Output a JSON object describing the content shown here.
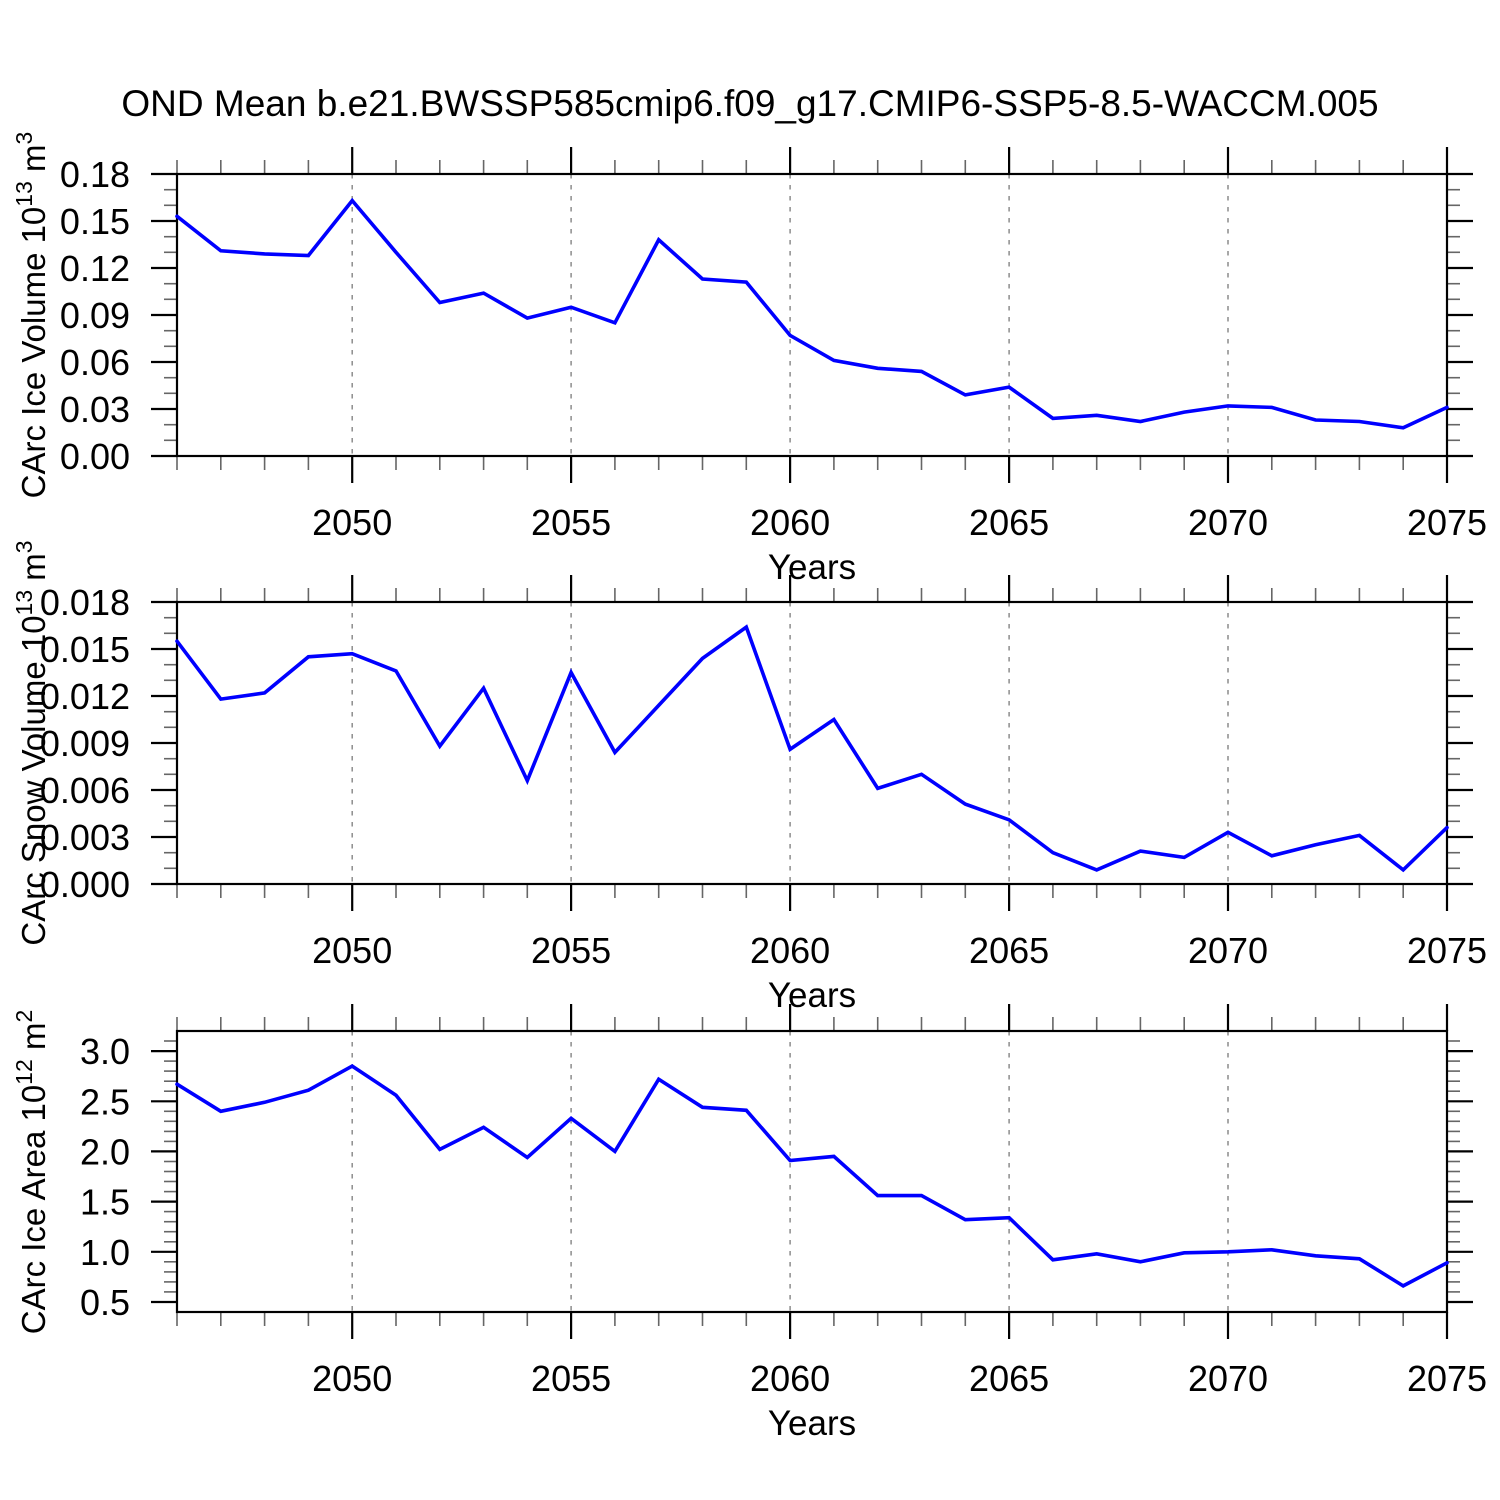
{
  "title": "OND Mean b.e21.BWSSP585cmip6.f09_g17.CMIP6-SSP5-8.5-WACCM.005",
  "x_axis_label": "Years",
  "colors": {
    "line": "#0000FF",
    "grid": "#8C8C8C",
    "axis": "#000000",
    "tick_major": "#000000",
    "tick_minor": "#666666",
    "text": "#000000",
    "background": "#FFFFFF"
  },
  "chart_data": [
    {
      "type": "line",
      "name": "ice-volume",
      "title": "",
      "xlabel": "Years",
      "ylabel": "CArc Ice Volume 10^13 m^3",
      "ylabel_parts": {
        "prefix": "CArc Ice Volume 10",
        "exp": "13",
        "mid": " m",
        "exp2": "3"
      },
      "x": [
        2046,
        2047,
        2048,
        2049,
        2050,
        2051,
        2052,
        2053,
        2054,
        2055,
        2056,
        2057,
        2058,
        2059,
        2060,
        2061,
        2062,
        2063,
        2064,
        2065,
        2066,
        2067,
        2068,
        2069,
        2070,
        2071,
        2072,
        2073,
        2074,
        2075
      ],
      "values": [
        0.153,
        0.131,
        0.129,
        0.128,
        0.163,
        0.13,
        0.098,
        0.104,
        0.088,
        0.095,
        0.085,
        0.138,
        0.113,
        0.111,
        0.077,
        0.061,
        0.056,
        0.054,
        0.039,
        0.044,
        0.024,
        0.026,
        0.022,
        0.028,
        0.032,
        0.031,
        0.023,
        0.022,
        0.018,
        0.031
      ],
      "xlim": [
        2046,
        2075
      ],
      "ylim": [
        0,
        0.18
      ],
      "yticks": [
        0,
        0.03,
        0.06,
        0.09,
        0.12,
        0.15,
        0.18
      ],
      "ytick_labels": [
        "0.00",
        "0.03",
        "0.06",
        "0.09",
        "0.12",
        "0.15",
        "0.18"
      ],
      "yminor_step": 0.01,
      "xticks": [
        2050,
        2055,
        2060,
        2065,
        2070,
        2075
      ],
      "xtick_labels": [
        "2050",
        "2055",
        "2060",
        "2065",
        "2070",
        "2075"
      ],
      "grid_years": [
        2050,
        2055,
        2060,
        2065,
        2070
      ],
      "grid": true
    },
    {
      "type": "line",
      "name": "snow-volume",
      "title": "",
      "xlabel": "Years",
      "ylabel": "CArc Snow Volume 10^13 m^3",
      "ylabel_parts": {
        "prefix": "CArc Snow Volume 10",
        "exp": "13",
        "mid": " m",
        "exp2": "3"
      },
      "x": [
        2046,
        2047,
        2048,
        2049,
        2050,
        2051,
        2052,
        2053,
        2054,
        2055,
        2056,
        2057,
        2058,
        2059,
        2060,
        2061,
        2062,
        2063,
        2064,
        2065,
        2066,
        2067,
        2068,
        2069,
        2070,
        2071,
        2072,
        2073,
        2074,
        2075
      ],
      "values": [
        0.0155,
        0.0118,
        0.0122,
        0.0145,
        0.0147,
        0.0136,
        0.0088,
        0.0125,
        0.0066,
        0.0135,
        0.0084,
        0.0114,
        0.0144,
        0.0164,
        0.0086,
        0.0105,
        0.0061,
        0.007,
        0.0051,
        0.0041,
        0.002,
        0.0009,
        0.0021,
        0.0017,
        0.0033,
        0.0018,
        0.0025,
        0.0031,
        0.0009,
        0.0036
      ],
      "xlim": [
        2046,
        2075
      ],
      "ylim": [
        0,
        0.018
      ],
      "yticks": [
        0,
        0.003,
        0.006,
        0.009,
        0.012,
        0.015,
        0.018
      ],
      "ytick_labels": [
        "0.000",
        "0.003",
        "0.006",
        "0.009",
        "0.012",
        "0.015",
        "0.018"
      ],
      "yminor_step": 0.001,
      "xticks": [
        2050,
        2055,
        2060,
        2065,
        2070,
        2075
      ],
      "xtick_labels": [
        "2050",
        "2055",
        "2060",
        "2065",
        "2070",
        "2075"
      ],
      "grid_years": [
        2050,
        2055,
        2060,
        2065,
        2070
      ],
      "grid": true
    },
    {
      "type": "line",
      "name": "ice-area",
      "title": "",
      "xlabel": "Years",
      "ylabel": "CArc Ice Area 10^12 m^2",
      "ylabel_parts": {
        "prefix": "CArc Ice Area 10",
        "exp": "12",
        "mid": " m",
        "exp2": "2"
      },
      "x": [
        2046,
        2047,
        2048,
        2049,
        2050,
        2051,
        2052,
        2053,
        2054,
        2055,
        2056,
        2057,
        2058,
        2059,
        2060,
        2061,
        2062,
        2063,
        2064,
        2065,
        2066,
        2067,
        2068,
        2069,
        2070,
        2071,
        2072,
        2073,
        2074,
        2075
      ],
      "values": [
        2.67,
        2.4,
        2.49,
        2.61,
        2.85,
        2.56,
        2.02,
        2.24,
        1.94,
        2.33,
        2.0,
        2.72,
        2.44,
        2.41,
        1.91,
        1.95,
        1.56,
        1.56,
        1.32,
        1.34,
        0.92,
        0.98,
        0.9,
        0.99,
        1.0,
        1.02,
        0.96,
        0.93,
        0.66,
        0.89
      ],
      "xlim": [
        2046,
        2075
      ],
      "ylim": [
        0.4,
        3.2
      ],
      "yticks": [
        0.5,
        1.0,
        1.5,
        2.0,
        2.5,
        3.0
      ],
      "ytick_labels": [
        "0.5",
        "1.0",
        "1.5",
        "2.0",
        "2.5",
        "3.0"
      ],
      "yminor_step": 0.1,
      "xticks": [
        2050,
        2055,
        2060,
        2065,
        2070,
        2075
      ],
      "xtick_labels": [
        "2050",
        "2055",
        "2060",
        "2065",
        "2070",
        "2075"
      ],
      "grid_years": [
        2050,
        2055,
        2060,
        2065,
        2070
      ],
      "grid": true
    }
  ]
}
